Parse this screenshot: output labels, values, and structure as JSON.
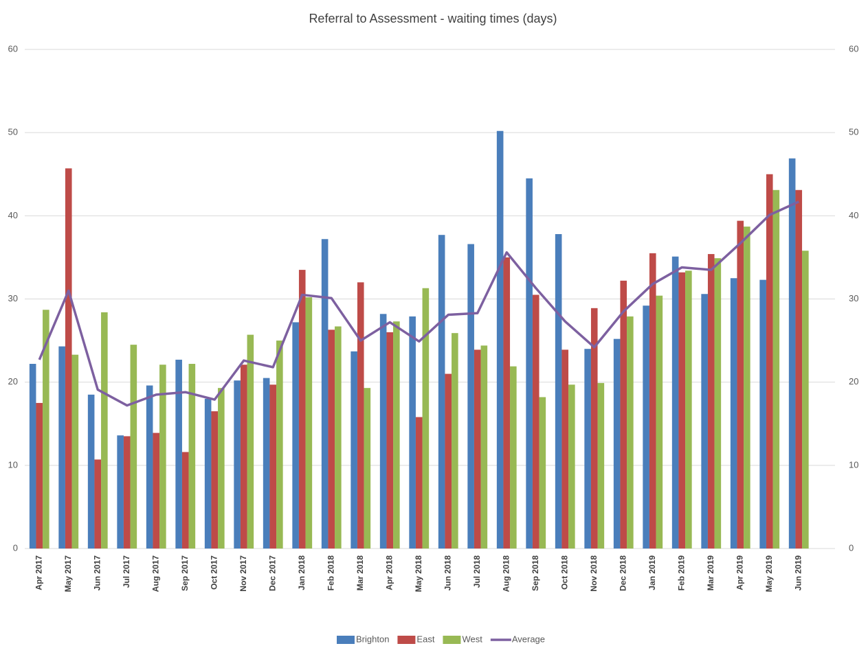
{
  "chart_data": {
    "type": "bar",
    "title": "Referral to Assessment - waiting times (days)",
    "categories": [
      "Apr 2017",
      "May 2017",
      "Jun 2017",
      "Jul 2017",
      "Aug 2017",
      "Sep 2017",
      "Oct 2017",
      "Nov 2017",
      "Dec 2017",
      "Jan 2018",
      "Feb 2018",
      "Mar 2018",
      "Apr 2018",
      "May 2018",
      "Jun 2018",
      "Jul 2018",
      "Aug 2018",
      "Sep 2018",
      "Oct 2018",
      "Nov 2018",
      "Dec 2018",
      "Jan 2019",
      "Feb 2019",
      "Mar 2019",
      "Apr 2019",
      "May 2019",
      "Jun 2019"
    ],
    "series": [
      {
        "name": "Brighton",
        "color": "#4a7ebb",
        "type": "bar",
        "values": [
          22.2,
          24.3,
          18.5,
          13.6,
          19.6,
          22.7,
          18.0,
          20.2,
          20.5,
          27.2,
          37.2,
          23.7,
          28.2,
          27.9,
          37.7,
          36.6,
          50.2,
          44.5,
          37.8,
          24.0,
          25.2,
          29.2,
          35.1,
          30.6,
          32.5,
          32.3,
          46.9
        ]
      },
      {
        "name": "East",
        "color": "#be4b48",
        "type": "bar",
        "values": [
          17.5,
          45.7,
          10.7,
          13.5,
          13.9,
          11.6,
          16.5,
          22.1,
          19.7,
          33.5,
          26.3,
          32.0,
          26.0,
          15.8,
          21.0,
          23.9,
          35.0,
          30.5,
          23.9,
          28.9,
          32.2,
          35.5,
          33.2,
          35.4,
          39.4,
          45.0,
          43.1
        ]
      },
      {
        "name": "West",
        "color": "#98b954",
        "type": "bar",
        "values": [
          28.7,
          23.3,
          28.4,
          24.5,
          22.1,
          22.2,
          19.3,
          25.7,
          25.0,
          30.2,
          26.7,
          19.3,
          27.3,
          31.3,
          25.9,
          24.4,
          21.9,
          18.2,
          19.7,
          19.9,
          27.9,
          30.4,
          33.4,
          34.9,
          38.7,
          43.1,
          35.8
        ]
      },
      {
        "name": "Average",
        "color": "#7d60a0",
        "type": "line",
        "axis": "y2",
        "values": [
          22.7,
          31.0,
          19.1,
          17.2,
          18.5,
          18.8,
          17.9,
          22.6,
          21.8,
          30.5,
          30.1,
          25.0,
          27.2,
          24.9,
          28.1,
          28.3,
          35.6,
          31.3,
          27.3,
          24.2,
          28.5,
          31.8,
          33.8,
          33.5,
          36.7,
          40.1,
          41.7
        ]
      }
    ],
    "ylim": [
      0,
      60
    ],
    "yticks": [
      0,
      10,
      20,
      30,
      40,
      50,
      60
    ],
    "y2lim": [
      0,
      60
    ],
    "y2ticks": [
      0,
      10,
      20,
      30,
      40,
      50,
      60
    ],
    "grid": true,
    "legend": "bottom"
  }
}
